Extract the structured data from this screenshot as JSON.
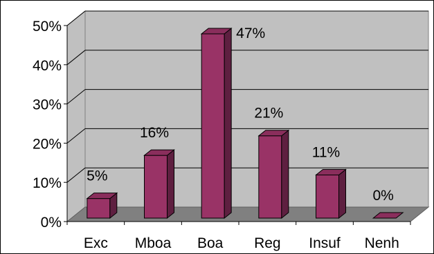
{
  "chart_data": {
    "type": "bar",
    "categories": [
      "Exc",
      "Mboa",
      "Boa",
      "Reg",
      "Insuf",
      "Nenh"
    ],
    "values": [
      5,
      16,
      47,
      21,
      11,
      0
    ],
    "data_labels": [
      "5%",
      "16%",
      "47%",
      "21%",
      "11%",
      "0%"
    ],
    "y_ticks": [
      {
        "value": 0,
        "label": "0%"
      },
      {
        "value": 10,
        "label": "10%"
      },
      {
        "value": 20,
        "label": "20%"
      },
      {
        "value": 30,
        "label": "30%"
      },
      {
        "value": 40,
        "label": "40%"
      },
      {
        "value": 50,
        "label": "50%"
      }
    ],
    "ylim": [
      0,
      50
    ],
    "grid": true,
    "legend": "none",
    "style": "3d-column",
    "title": "",
    "xlabel": "",
    "ylabel": ""
  },
  "colors": {
    "bar_front": "#993366",
    "bar_side": "#5e1f40",
    "bar_top": "#8a2e5c",
    "back_wall": "#c0c0c0",
    "side_wall": "#c0c0c0",
    "floor": "#808080",
    "grid": "#000000"
  }
}
